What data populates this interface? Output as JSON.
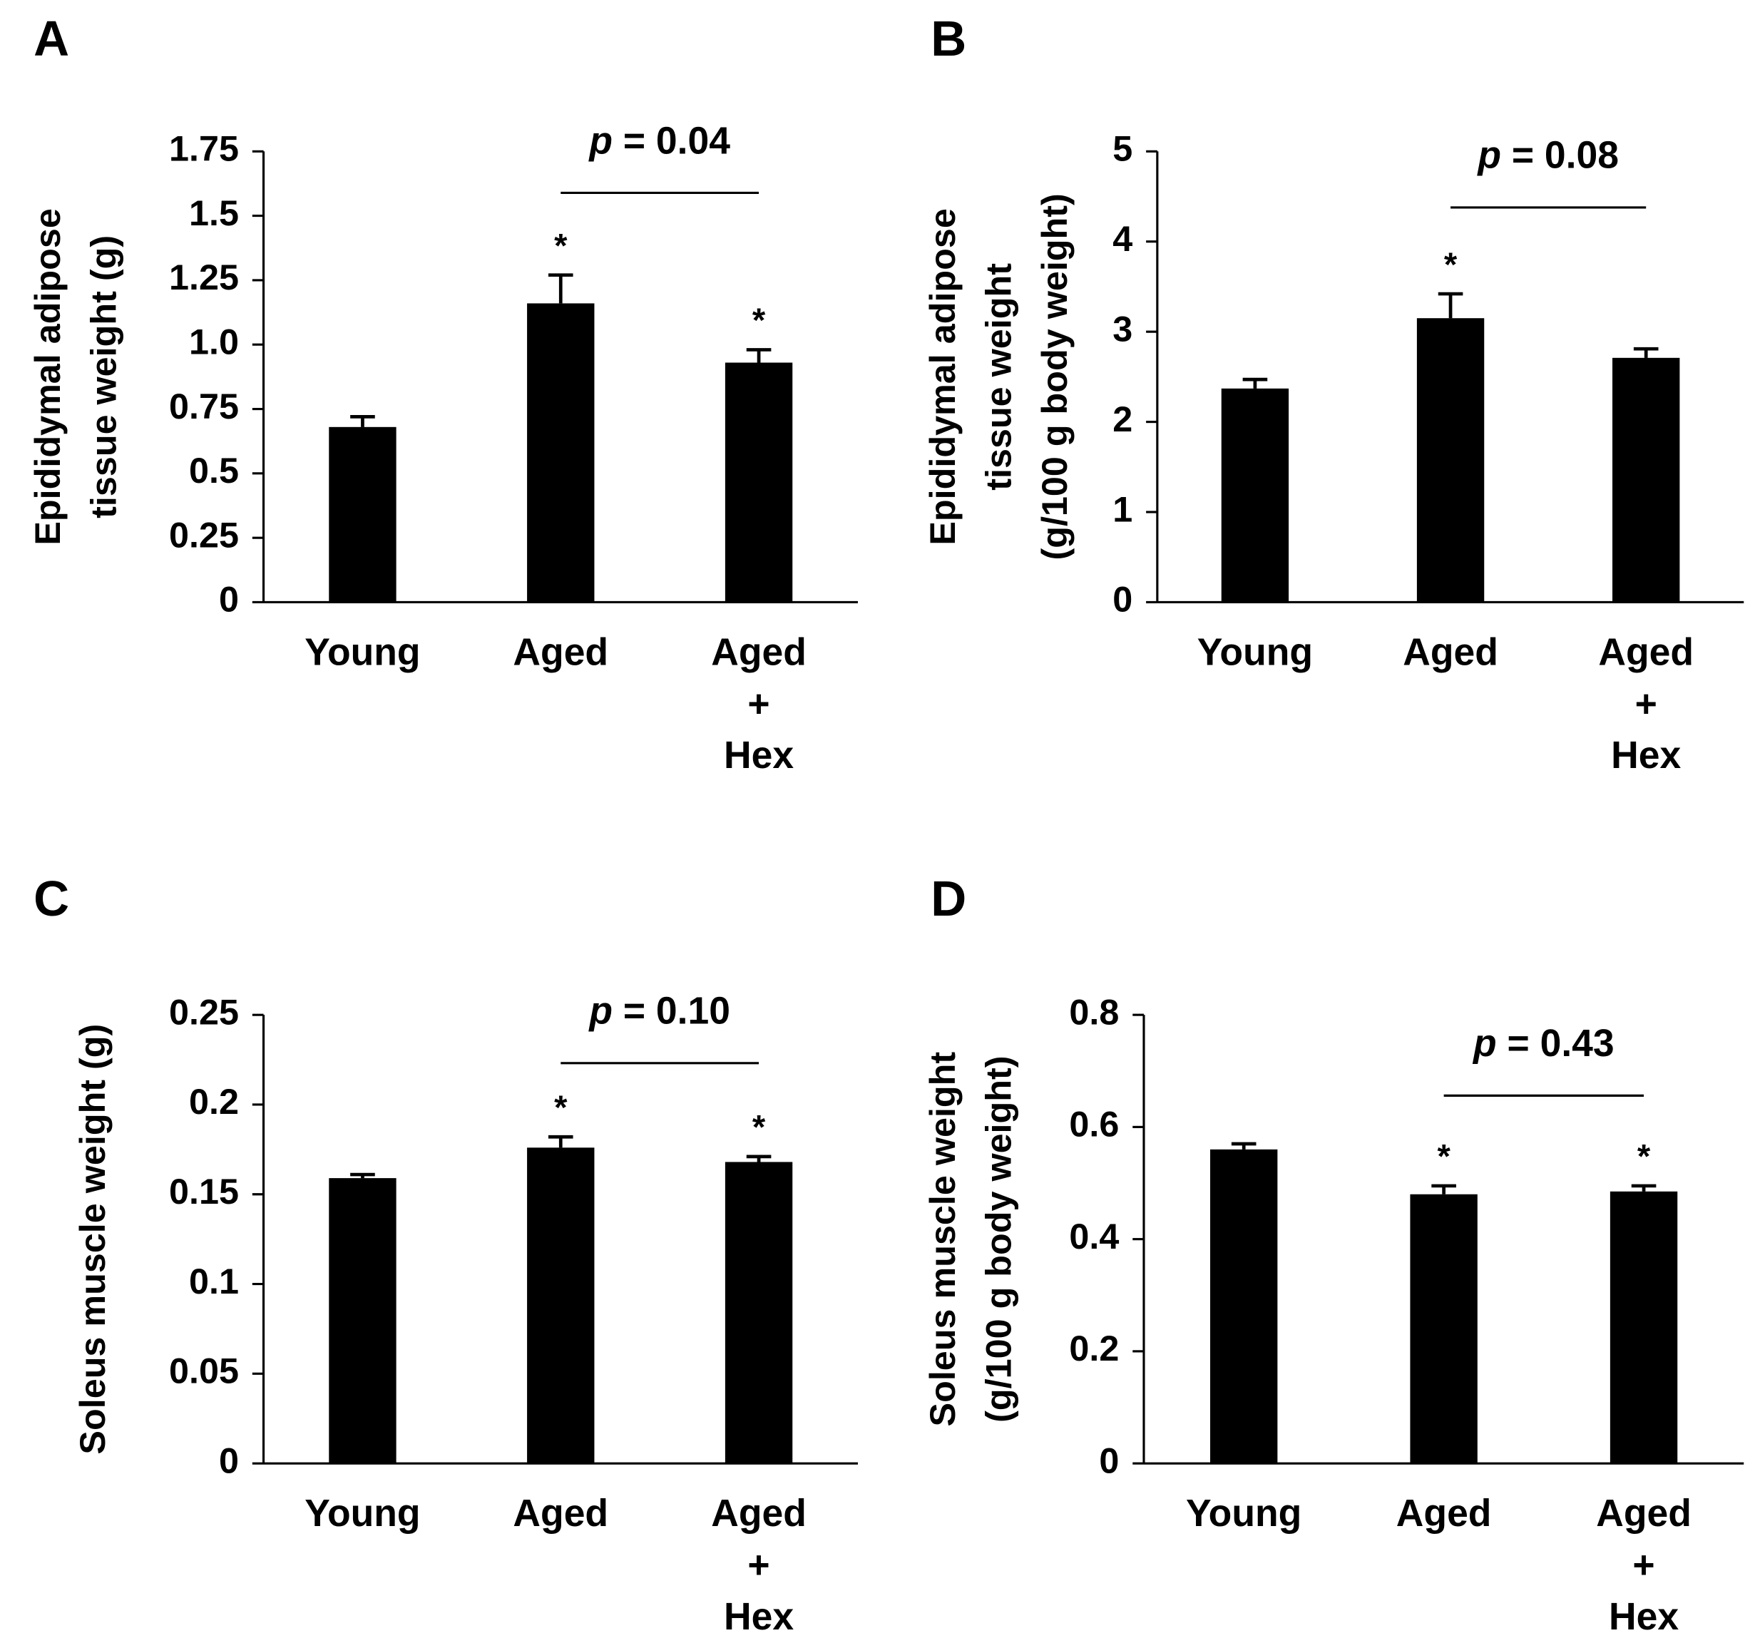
{
  "chart_data": [
    {
      "type": "bar",
      "panel": "A",
      "ylabel": [
        "Epididymal adipose",
        "tissue weight (g)"
      ],
      "categories": [
        "Young",
        "Aged",
        "Aged\n+\nHex"
      ],
      "values": [
        0.68,
        1.16,
        0.93
      ],
      "errors": [
        0.04,
        0.11,
        0.05
      ],
      "color": "#000000",
      "significance": [
        null,
        "*",
        "*"
      ],
      "annotation": {
        "symbol": "p",
        "text": "= 0.04"
      },
      "ylim": [
        0,
        1.75
      ],
      "yticks": [
        0,
        0.25,
        0.5,
        0.75,
        {
          "value": 1,
          "label": "1.0"
        },
        1.25,
        1.5,
        1.75
      ]
    },
    {
      "type": "bar",
      "panel": "B",
      "ylabel": [
        "Epididymal adipose",
        "tissue weight",
        "(g/100 g body weight)"
      ],
      "categories": [
        "Young",
        "Aged",
        "Aged\n+\nHex"
      ],
      "values": [
        2.37,
        3.15,
        2.71
      ],
      "errors": [
        0.1,
        0.27,
        0.1
      ],
      "color": "#000000",
      "significance": [
        null,
        "*",
        null
      ],
      "annotation": {
        "symbol": "p",
        "text": "= 0.08"
      },
      "ylim": [
        0,
        5
      ],
      "yticks": [
        0,
        1,
        2,
        3,
        4,
        5
      ]
    },
    {
      "type": "bar",
      "panel": "C",
      "ylabel": [
        "Soleus muscle weight (g)"
      ],
      "categories": [
        "Young",
        "Aged",
        "Aged\n+\nHex"
      ],
      "values": [
        0.159,
        0.176,
        0.168
      ],
      "errors": [
        0.002,
        0.006,
        0.003
      ],
      "color": "#000000",
      "significance": [
        null,
        "*",
        "*"
      ],
      "annotation": {
        "symbol": "p",
        "text": "= 0.10"
      },
      "ylim": [
        0,
        0.25
      ],
      "yticks": [
        0,
        0.05,
        0.1,
        0.15,
        0.2,
        0.25
      ]
    },
    {
      "type": "bar",
      "panel": "D",
      "ylabel": [
        "Soleus muscle weight",
        "(g/100 g body weight)"
      ],
      "categories": [
        "Young",
        "Aged",
        "Aged\n+\nHex"
      ],
      "values": [
        0.56,
        0.48,
        0.485
      ],
      "errors": [
        0.01,
        0.015,
        0.01
      ],
      "color": "#000000",
      "significance": [
        null,
        "*",
        "*"
      ],
      "annotation": {
        "symbol": "p",
        "text": "= 0.43"
      },
      "ylim": [
        0,
        0.8
      ],
      "yticks": [
        0,
        0.2,
        0.4,
        0.6,
        0.8
      ]
    }
  ]
}
